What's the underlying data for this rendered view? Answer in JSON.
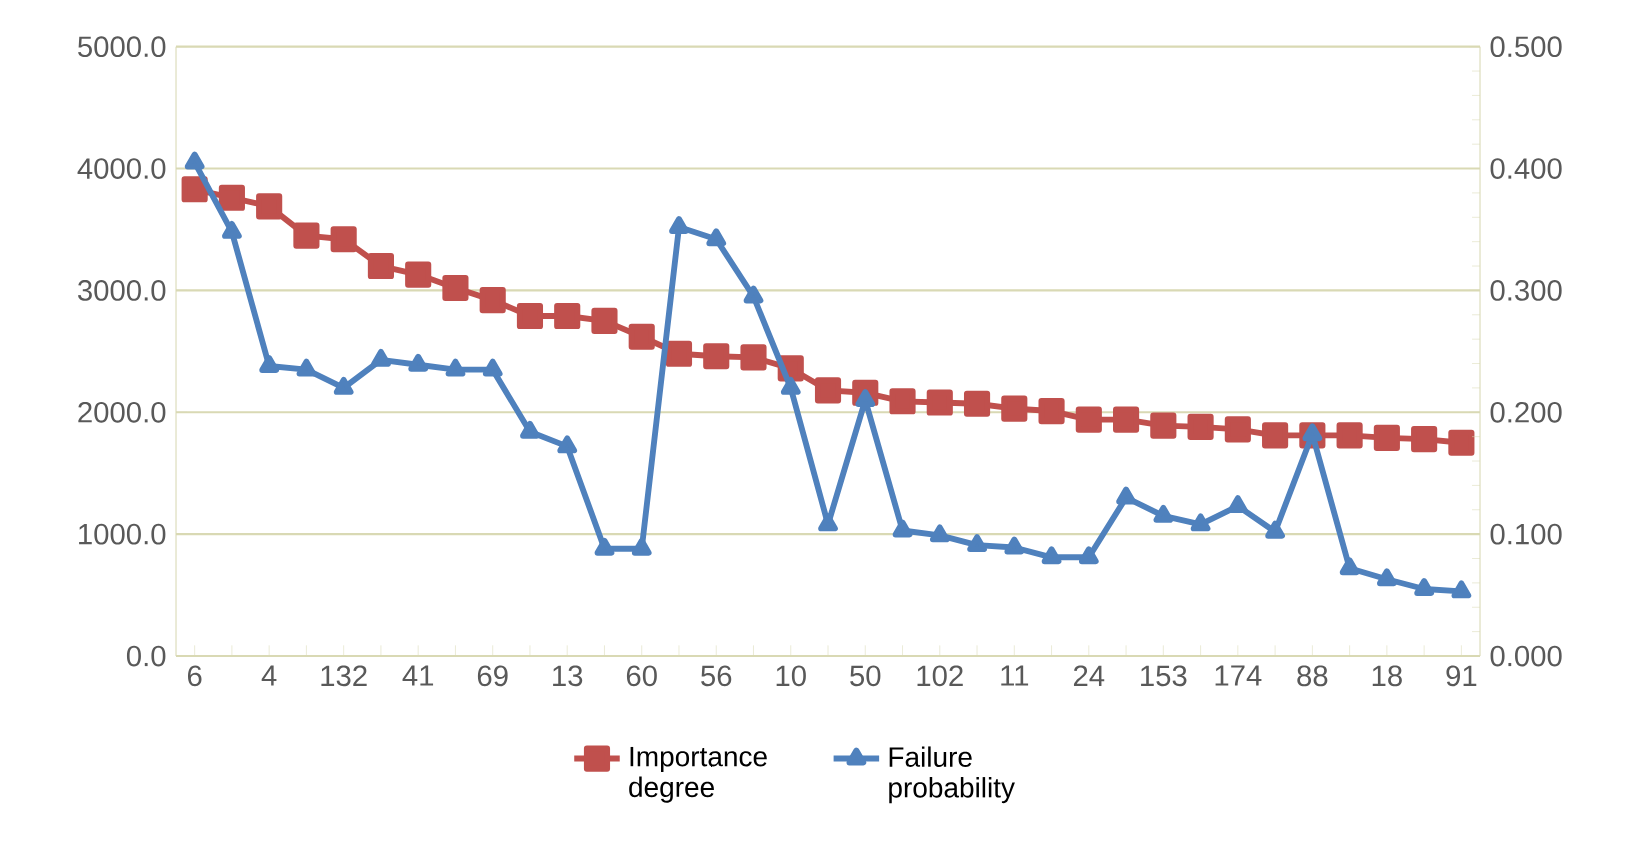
{
  "chart_data": {
    "type": "line",
    "categories": [
      "6",
      null,
      "4",
      null,
      "132",
      null,
      "41",
      null,
      "69",
      null,
      "13",
      null,
      "60",
      null,
      "56",
      null,
      "10",
      null,
      "50",
      null,
      "102",
      null,
      "11",
      null,
      "24",
      null,
      "153",
      null,
      "174",
      null,
      "88",
      null,
      "18",
      null,
      "91"
    ],
    "series": [
      {
        "name": "Importance degree",
        "color": "#c0504d",
        "marker": "square",
        "values": [
          3830,
          3760,
          3690,
          3450,
          3420,
          3200,
          3130,
          3020,
          2920,
          2790,
          2790,
          2750,
          2620,
          2480,
          2460,
          2450,
          2360,
          2180,
          2160,
          2090,
          2080,
          2070,
          2030,
          2010,
          1940,
          1940,
          1890,
          1880,
          1860,
          1810,
          1810,
          1810,
          1790,
          1780,
          1750
        ]
      },
      {
        "name": "Failure probability",
        "color": "#4f81bd",
        "marker": "triangle",
        "axis": "y2",
        "values": [
          0.405,
          0.348,
          0.238,
          0.235,
          0.22,
          0.243,
          0.239,
          0.235,
          0.235,
          0.184,
          0.172,
          0.088,
          0.088,
          0.352,
          0.342,
          0.295,
          0.22,
          0.108,
          0.21,
          0.103,
          0.099,
          0.091,
          0.089,
          0.081,
          0.081,
          0.13,
          0.115,
          0.108,
          0.123,
          0.102,
          0.182,
          0.072,
          0.063,
          0.055,
          0.053
        ]
      }
    ],
    "ylim": [
      0,
      5000
    ],
    "yticks": [
      {
        "value": 0,
        "label": "0.0"
      },
      {
        "value": 1000,
        "label": "1000.0"
      },
      {
        "value": 2000,
        "label": "2000.0"
      },
      {
        "value": 3000,
        "label": "3000.0"
      },
      {
        "value": 4000,
        "label": "4000.0"
      },
      {
        "value": 5000,
        "label": "5000.0"
      }
    ],
    "y2lim": [
      0,
      0.5
    ],
    "y2ticks": [
      {
        "value": 0,
        "label": "0.000"
      },
      {
        "value": 0.1,
        "label": "0.100"
      },
      {
        "value": 0.2,
        "label": "0.200"
      },
      {
        "value": 0.3,
        "label": "0.300"
      },
      {
        "value": 0.4,
        "label": "0.400"
      },
      {
        "value": 0.5,
        "label": "0.500"
      }
    ],
    "grid": "y",
    "legend": "bottom",
    "line_style": "solid"
  }
}
